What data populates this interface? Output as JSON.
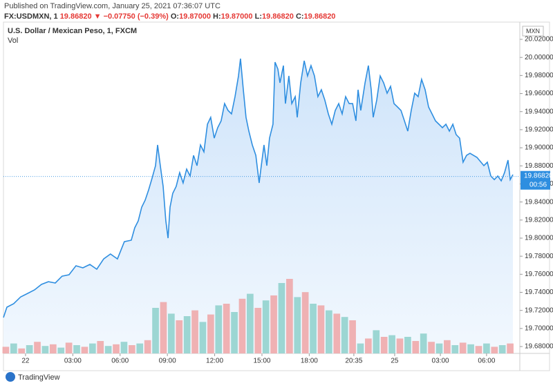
{
  "header": {
    "published": "Published on TradingView.com, January 25, 2021 07:36:07 UTC",
    "symbol": "FX:USDMXN, 1",
    "last": "19.86820",
    "change": "▼ −0.07750 (−0.39%)",
    "ohlc": [
      {
        "label": "O:",
        "value": "19.87000"
      },
      {
        "label": "H:",
        "value": "19.87000"
      },
      {
        "label": "L:",
        "value": "19.86820"
      },
      {
        "label": "C:",
        "value": "19.86820"
      }
    ]
  },
  "footer": {
    "brand": "TradingView"
  },
  "chart_data": {
    "type": "area",
    "title": "U.S. Dollar / Mexican Peso, 1, FXCM",
    "currency": "MXN",
    "color": "#2e8ee0",
    "fill": "#d6e9fb",
    "xlim": [
      -1.4,
      31.36
    ],
    "xticks": [
      {
        "value": 0,
        "label": "22"
      },
      {
        "value": 3,
        "label": "03:00"
      },
      {
        "value": 6,
        "label": "06:00"
      },
      {
        "value": 9,
        "label": "09:00"
      },
      {
        "value": 12,
        "label": "12:00"
      },
      {
        "value": 15,
        "label": "15:00"
      },
      {
        "value": 18,
        "label": "18:00"
      },
      {
        "value": 20.83,
        "label": "20:35"
      },
      {
        "value": 23.42,
        "label": "25"
      },
      {
        "value": 26.32,
        "label": "03:00"
      },
      {
        "value": 29.25,
        "label": "06:00"
      }
    ],
    "ylim": [
      19.6724,
      20.0391
    ],
    "yticks": [
      {
        "value": 19.68,
        "label": "19.68000"
      },
      {
        "value": 19.7,
        "label": "19.70000"
      },
      {
        "value": 19.72,
        "label": "19.72000"
      },
      {
        "value": 19.74,
        "label": "19.74000"
      },
      {
        "value": 19.76,
        "label": "19.76000"
      },
      {
        "value": 19.78,
        "label": "19.78000"
      },
      {
        "value": 19.8,
        "label": "19.80000"
      },
      {
        "value": 19.82,
        "label": "19.82000"
      },
      {
        "value": 19.84,
        "label": "19.84000"
      },
      {
        "value": 19.86,
        "label": "19.86000"
      },
      {
        "value": 19.88,
        "label": "19.88000"
      },
      {
        "value": 19.9,
        "label": "19.90000"
      },
      {
        "value": 19.92,
        "label": "19.92000"
      },
      {
        "value": 19.94,
        "label": "19.94000"
      },
      {
        "value": 19.96,
        "label": "19.96000"
      },
      {
        "value": 19.98,
        "label": "19.98000"
      },
      {
        "value": 20.0,
        "label": "20.00000"
      },
      {
        "value": 20.02,
        "label": "20.02000"
      }
    ],
    "last_price": {
      "value": 19.8682,
      "label": "19.86820",
      "countdown": "00:56"
    },
    "x": [
      -1.4,
      -1.18,
      -0.75,
      -0.31,
      0.13,
      0.57,
      1.01,
      1.45,
      1.89,
      2.32,
      2.76,
      3.2,
      3.64,
      4.08,
      4.52,
      4.96,
      5.39,
      5.83,
      6.27,
      6.71,
      6.93,
      7.15,
      7.37,
      7.59,
      7.81,
      8.03,
      8.25,
      8.38,
      8.55,
      8.73,
      8.9,
      9.04,
      9.17,
      9.34,
      9.56,
      9.78,
      10.0,
      10.22,
      10.44,
      10.66,
      10.88,
      11.1,
      11.32,
      11.54,
      11.75,
      11.97,
      12.19,
      12.41,
      12.63,
      12.85,
      13.07,
      13.29,
      13.51,
      13.64,
      13.82,
      13.99,
      14.17,
      14.39,
      14.61,
      14.82,
      14.96,
      15.13,
      15.31,
      15.48,
      15.7,
      15.83,
      16.01,
      16.14,
      16.36,
      16.49,
      16.71,
      16.89,
      17.11,
      17.24,
      17.46,
      17.68,
      17.89,
      18.11,
      18.33,
      18.55,
      18.77,
      18.99,
      19.21,
      19.43,
      19.65,
      19.87,
      20.09,
      20.31,
      20.53,
      20.75,
      20.96,
      21.1,
      21.27,
      21.54,
      21.75,
      21.93,
      22.06,
      22.28,
      22.5,
      22.72,
      22.94,
      23.16,
      23.38,
      23.6,
      23.82,
      24.04,
      24.25,
      24.47,
      24.69,
      24.91,
      25.13,
      25.35,
      25.57,
      25.79,
      26.01,
      26.23,
      26.45,
      26.67,
      26.89,
      27.11,
      27.32,
      27.54,
      27.76,
      27.98,
      28.2,
      28.64,
      29.08,
      29.3,
      29.52,
      29.74,
      29.96,
      30.18,
      30.39,
      30.61,
      30.75,
      30.92
    ],
    "values": [
      19.7121,
      19.7236,
      19.7274,
      19.735,
      19.7388,
      19.7427,
      19.7488,
      19.7518,
      19.7503,
      19.7579,
      19.7595,
      19.7694,
      19.7671,
      19.7709,
      19.7656,
      19.777,
      19.7824,
      19.777,
      19.7961,
      19.7977,
      19.8114,
      19.8191,
      19.8343,
      19.842,
      19.8534,
      19.8664,
      19.8802,
      19.9031,
      19.8802,
      19.8573,
      19.8191,
      19.8,
      19.8343,
      19.8496,
      19.8573,
      19.8725,
      19.8611,
      19.8764,
      19.8687,
      19.8916,
      19.8802,
      19.9031,
      19.8955,
      19.926,
      19.9337,
      19.9107,
      19.9222,
      19.9298,
      19.9489,
      19.9413,
      19.9375,
      19.9566,
      19.9795,
      19.9986,
      19.9642,
      19.9337,
      19.9184,
      19.9031,
      19.8916,
      19.8611,
      19.8802,
      19.9031,
      19.8802,
      19.9107,
      19.926,
      19.9948,
      19.9871,
      19.9719,
      19.991,
      19.9489,
      19.9795,
      19.9489,
      19.9566,
      19.9337,
      19.9719,
      19.9963,
      19.9795,
      19.991,
      19.9795,
      19.9566,
      19.9642,
      19.9528,
      19.9375,
      19.926,
      19.9413,
      19.9489,
      19.9375,
      19.9566,
      19.9489,
      19.9489,
      19.9298,
      19.9642,
      19.9413,
      19.9719,
      19.991,
      19.9642,
      19.9337,
      19.9528,
      19.9795,
      19.9719,
      19.9604,
      19.968,
      19.9489,
      19.9451,
      19.9413,
      19.9298,
      19.9184,
      19.9413,
      19.9604,
      19.9566,
      19.9757,
      19.9642,
      19.9451,
      19.9375,
      19.9298,
      19.926,
      19.9222,
      19.926,
      19.9184,
      19.926,
      19.9146,
      19.9107,
      19.884,
      19.8916,
      19.8939,
      19.8894,
      19.8802,
      19.884,
      19.8687,
      19.8648,
      19.8687,
      19.8634,
      19.8725,
      19.8863,
      19.8648,
      19.8703
    ],
    "volume": {
      "name": "Vol",
      "colors": [
        "#ef9a9a",
        "#80cbc4"
      ],
      "ylim": [
        0,
        120
      ],
      "x": [
        -1.25,
        -0.75,
        -0.25,
        0.25,
        0.75,
        1.25,
        1.75,
        2.25,
        2.75,
        3.25,
        3.75,
        4.25,
        4.75,
        5.25,
        5.75,
        6.25,
        6.75,
        7.25,
        7.75,
        8.25,
        8.75,
        9.25,
        9.75,
        10.25,
        10.75,
        11.25,
        11.75,
        12.25,
        12.75,
        13.25,
        13.75,
        14.25,
        14.75,
        15.25,
        15.75,
        16.25,
        16.75,
        17.25,
        17.75,
        18.25,
        18.75,
        19.25,
        19.75,
        20.25,
        20.75,
        21.25,
        21.75,
        22.25,
        22.75,
        23.25,
        23.75,
        24.25,
        24.75,
        25.25,
        25.75,
        26.25,
        26.75,
        27.25,
        27.75,
        28.25,
        28.75,
        29.25,
        29.75,
        30.25,
        30.75
      ],
      "values": [
        8,
        12,
        6,
        10,
        14,
        9,
        11,
        7,
        13,
        10,
        8,
        12,
        15,
        9,
        11,
        14,
        10,
        12,
        16,
        55,
        62,
        48,
        40,
        45,
        52,
        38,
        47,
        58,
        60,
        50,
        66,
        72,
        55,
        64,
        70,
        85,
        90,
        68,
        74,
        60,
        58,
        52,
        48,
        44,
        40,
        12,
        18,
        28,
        20,
        22,
        18,
        20,
        15,
        24,
        14,
        12,
        16,
        10,
        13,
        11,
        9,
        12,
        8,
        10,
        12
      ]
    }
  }
}
